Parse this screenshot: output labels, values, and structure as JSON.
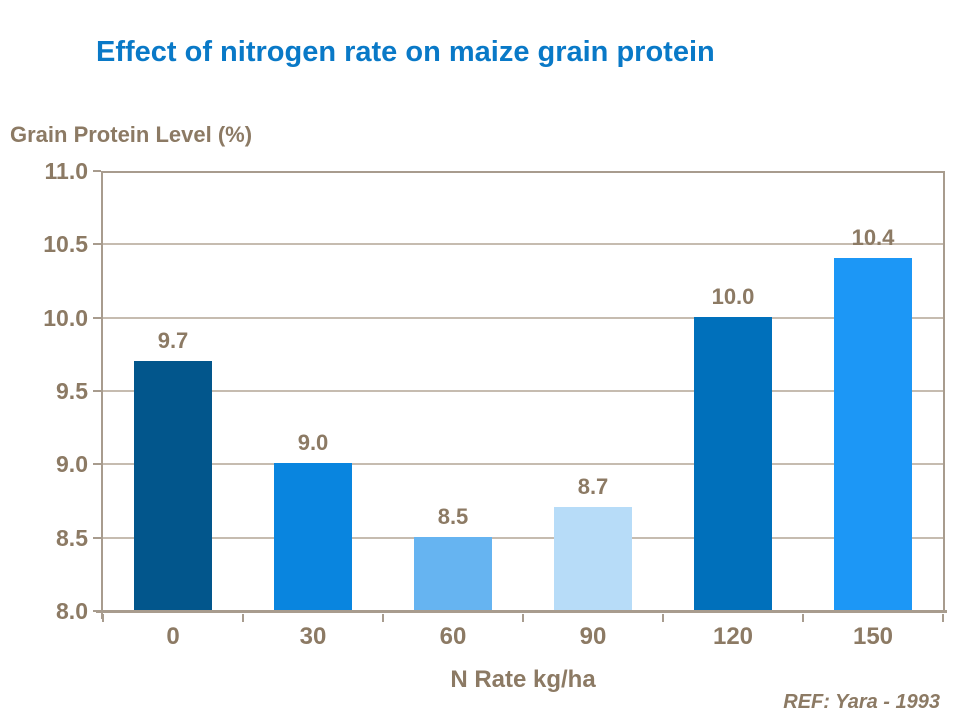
{
  "title": "Effect of nitrogen rate on maize grain protein",
  "reference": "REF: Yara - 1993",
  "chart_data": {
    "type": "bar",
    "title": "Effect of nitrogen rate on maize grain protein",
    "ylabel": "Grain Protein Level (%)",
    "xlabel": "N Rate kg/ha",
    "categories": [
      "0",
      "30",
      "60",
      "90",
      "120",
      "150"
    ],
    "values": [
      9.7,
      9.0,
      8.5,
      8.7,
      10.0,
      10.4
    ],
    "value_labels": [
      "9.7",
      "9.0",
      "8.5",
      "8.7",
      "10.0",
      "10.4"
    ],
    "ylim": [
      8.0,
      11.0
    ],
    "yticks": [
      11.0,
      10.5,
      10.0,
      9.5,
      9.0,
      8.5,
      8.0
    ],
    "ytick_labels": [
      "11.0",
      "10.5",
      "10.0",
      "9.5",
      "9.0",
      "8.5",
      "8.0"
    ],
    "grid": true,
    "legend": "none",
    "bar_colors": [
      "#02568C",
      "#0985DF",
      "#66B4F1",
      "#B7DCF8",
      "#0070BB",
      "#1C97F6"
    ]
  },
  "colors": {
    "title": "#0979C7",
    "text": "#8C7A64",
    "axis": "#A89C8E",
    "gridline": "#C6BCB0",
    "background": "#FFFFFF"
  }
}
